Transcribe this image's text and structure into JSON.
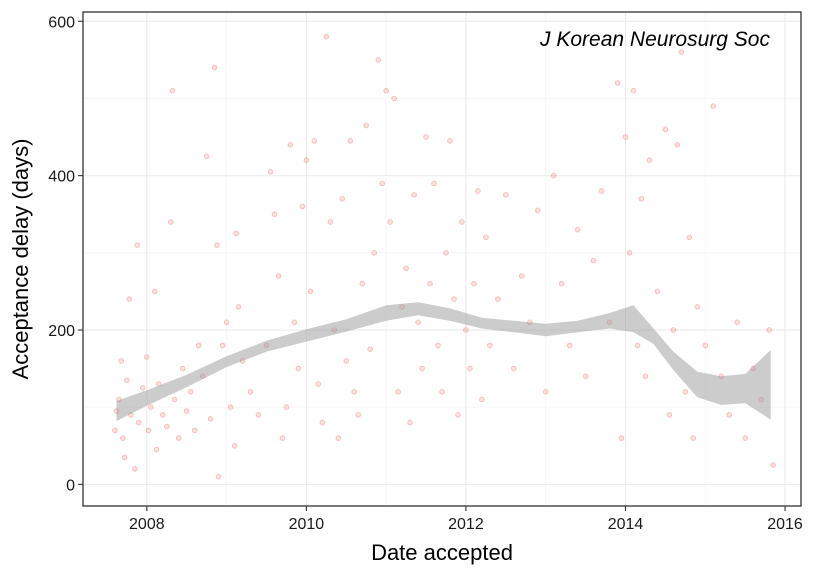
{
  "chart_data": {
    "type": "scatter",
    "annotation": "J Korean Neurosurg Soc",
    "xlabel": "Date accepted",
    "ylabel": "Acceptance delay (days)",
    "xlim": [
      2007.2,
      2016.2
    ],
    "ylim": [
      -28,
      612
    ],
    "x_ticks": [
      2008,
      2010,
      2012,
      2014,
      2016
    ],
    "y_ticks": [
      0,
      200,
      400,
      600
    ],
    "grid": true,
    "point_color": "#e8282b",
    "band_color": "#999999",
    "points_note": "approximately 1400 individual points; representative sample of read values",
    "points": [
      [
        2007.6,
        70
      ],
      [
        2007.62,
        95
      ],
      [
        2007.65,
        110
      ],
      [
        2007.68,
        160
      ],
      [
        2007.7,
        60
      ],
      [
        2007.72,
        35
      ],
      [
        2007.75,
        135
      ],
      [
        2007.78,
        240
      ],
      [
        2007.8,
        90
      ],
      [
        2007.85,
        20
      ],
      [
        2007.88,
        310
      ],
      [
        2007.9,
        80
      ],
      [
        2007.95,
        125
      ],
      [
        2008.0,
        165
      ],
      [
        2008.02,
        70
      ],
      [
        2008.05,
        100
      ],
      [
        2008.1,
        250
      ],
      [
        2008.12,
        45
      ],
      [
        2008.15,
        130
      ],
      [
        2008.2,
        90
      ],
      [
        2008.25,
        75
      ],
      [
        2008.3,
        340
      ],
      [
        2008.32,
        510
      ],
      [
        2008.35,
        110
      ],
      [
        2008.4,
        60
      ],
      [
        2008.45,
        150
      ],
      [
        2008.5,
        95
      ],
      [
        2008.55,
        120
      ],
      [
        2008.6,
        70
      ],
      [
        2008.65,
        180
      ],
      [
        2008.7,
        140
      ],
      [
        2008.75,
        425
      ],
      [
        2008.8,
        85
      ],
      [
        2008.85,
        540
      ],
      [
        2008.88,
        310
      ],
      [
        2008.9,
        10
      ],
      [
        2008.95,
        180
      ],
      [
        2009.0,
        210
      ],
      [
        2009.05,
        100
      ],
      [
        2009.1,
        50
      ],
      [
        2009.12,
        325
      ],
      [
        2009.15,
        230
      ],
      [
        2009.2,
        160
      ],
      [
        2009.3,
        120
      ],
      [
        2009.4,
        90
      ],
      [
        2009.5,
        180
      ],
      [
        2009.55,
        405
      ],
      [
        2009.6,
        350
      ],
      [
        2009.65,
        270
      ],
      [
        2009.7,
        60
      ],
      [
        2009.75,
        100
      ],
      [
        2009.8,
        440
      ],
      [
        2009.85,
        210
      ],
      [
        2009.9,
        150
      ],
      [
        2009.95,
        360
      ],
      [
        2010.0,
        420
      ],
      [
        2010.05,
        250
      ],
      [
        2010.1,
        445
      ],
      [
        2010.15,
        130
      ],
      [
        2010.2,
        80
      ],
      [
        2010.25,
        580
      ],
      [
        2010.3,
        340
      ],
      [
        2010.35,
        200
      ],
      [
        2010.4,
        60
      ],
      [
        2010.45,
        370
      ],
      [
        2010.5,
        160
      ],
      [
        2010.55,
        445
      ],
      [
        2010.6,
        120
      ],
      [
        2010.65,
        90
      ],
      [
        2010.7,
        260
      ],
      [
        2010.75,
        465
      ],
      [
        2010.8,
        175
      ],
      [
        2010.85,
        300
      ],
      [
        2010.9,
        550
      ],
      [
        2010.95,
        390
      ],
      [
        2011.0,
        510
      ],
      [
        2011.05,
        340
      ],
      [
        2011.1,
        500
      ],
      [
        2011.15,
        120
      ],
      [
        2011.2,
        230
      ],
      [
        2011.25,
        280
      ],
      [
        2011.3,
        80
      ],
      [
        2011.35,
        375
      ],
      [
        2011.4,
        210
      ],
      [
        2011.45,
        150
      ],
      [
        2011.5,
        450
      ],
      [
        2011.55,
        260
      ],
      [
        2011.6,
        390
      ],
      [
        2011.65,
        180
      ],
      [
        2011.7,
        120
      ],
      [
        2011.75,
        300
      ],
      [
        2011.8,
        445
      ],
      [
        2011.85,
        240
      ],
      [
        2011.9,
        90
      ],
      [
        2011.95,
        340
      ],
      [
        2012.0,
        200
      ],
      [
        2012.05,
        150
      ],
      [
        2012.1,
        260
      ],
      [
        2012.15,
        380
      ],
      [
        2012.2,
        110
      ],
      [
        2012.25,
        320
      ],
      [
        2012.3,
        180
      ],
      [
        2012.4,
        240
      ],
      [
        2012.5,
        375
      ],
      [
        2012.6,
        150
      ],
      [
        2012.7,
        270
      ],
      [
        2012.8,
        210
      ],
      [
        2012.9,
        355
      ],
      [
        2013.0,
        120
      ],
      [
        2013.1,
        400
      ],
      [
        2013.2,
        260
      ],
      [
        2013.3,
        180
      ],
      [
        2013.4,
        330
      ],
      [
        2013.5,
        140
      ],
      [
        2013.6,
        290
      ],
      [
        2013.7,
        380
      ],
      [
        2013.8,
        210
      ],
      [
        2013.9,
        520
      ],
      [
        2013.95,
        60
      ],
      [
        2014.0,
        450
      ],
      [
        2014.05,
        300
      ],
      [
        2014.1,
        510
      ],
      [
        2014.15,
        180
      ],
      [
        2014.2,
        370
      ],
      [
        2014.25,
        140
      ],
      [
        2014.3,
        420
      ],
      [
        2014.4,
        250
      ],
      [
        2014.5,
        460
      ],
      [
        2014.55,
        90
      ],
      [
        2014.6,
        200
      ],
      [
        2014.65,
        440
      ],
      [
        2014.7,
        560
      ],
      [
        2014.75,
        120
      ],
      [
        2014.8,
        320
      ],
      [
        2014.85,
        60
      ],
      [
        2014.9,
        230
      ],
      [
        2015.0,
        180
      ],
      [
        2015.1,
        490
      ],
      [
        2015.2,
        140
      ],
      [
        2015.3,
        90
      ],
      [
        2015.4,
        210
      ],
      [
        2015.5,
        60
      ],
      [
        2015.6,
        150
      ],
      [
        2015.7,
        110
      ],
      [
        2015.8,
        200
      ],
      [
        2015.85,
        25
      ]
    ],
    "smooth": {
      "x": [
        2007.62,
        2008.0,
        2008.5,
        2009.0,
        2009.5,
        2010.0,
        2010.5,
        2011.0,
        2011.4,
        2011.8,
        2012.2,
        2012.6,
        2013.0,
        2013.4,
        2013.8,
        2014.1,
        2014.35,
        2014.6,
        2014.9,
        2015.2,
        2015.5,
        2015.82
      ],
      "lower": [
        82,
        102,
        126,
        152,
        172,
        185,
        198,
        212,
        219,
        212,
        202,
        197,
        192,
        197,
        202,
        197,
        182,
        148,
        113,
        103,
        105,
        84
      ],
      "upper": [
        108,
        122,
        142,
        166,
        186,
        201,
        214,
        232,
        236,
        228,
        216,
        212,
        208,
        212,
        222,
        232,
        202,
        172,
        146,
        140,
        143,
        174
      ]
    }
  }
}
